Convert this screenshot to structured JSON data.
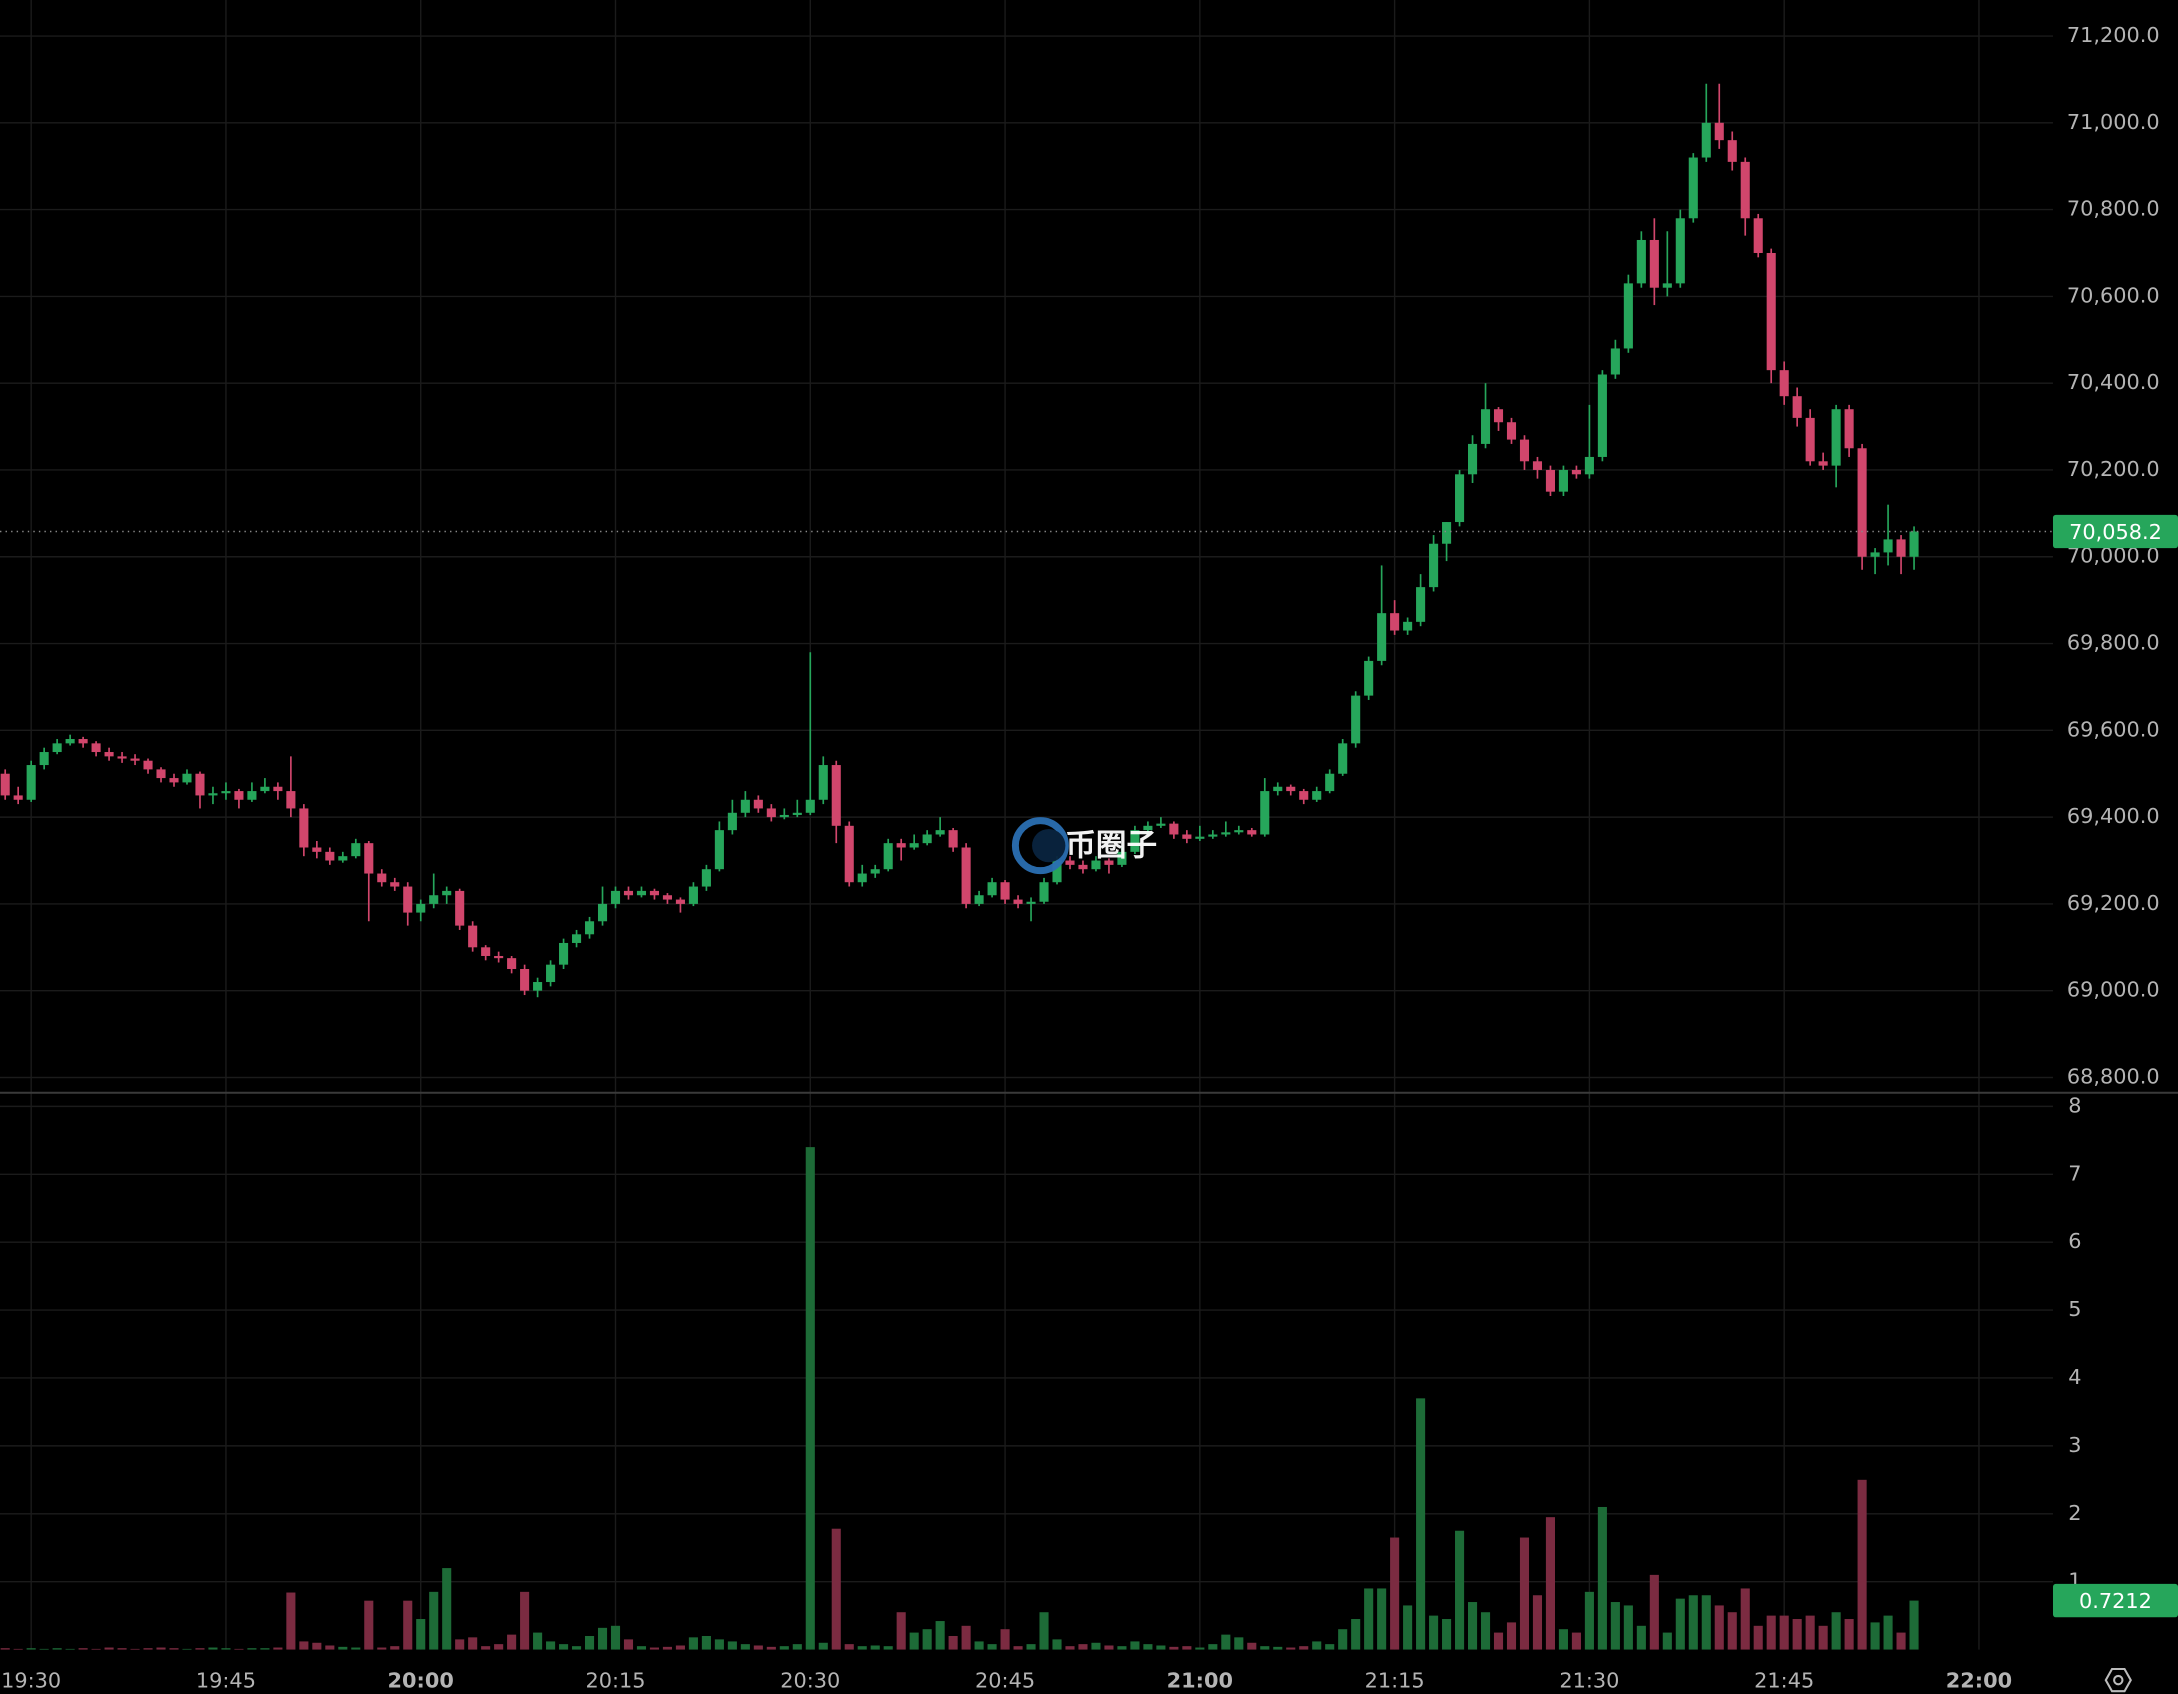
{
  "chart_data": {
    "type": "candlestick",
    "grid": true,
    "watermark": "币圈子",
    "up_color": "#26a65b",
    "down_color": "#d1466c",
    "volume_up_color": "#1d6b37",
    "volume_down_color": "#7b2b41",
    "xlim": [
      1167.6,
      1325.7
    ],
    "xticks": [
      {
        "value": 1170,
        "label": "19:30"
      },
      {
        "value": 1185,
        "label": "19:45"
      },
      {
        "value": 1200,
        "label": "20:00",
        "bold": true
      },
      {
        "value": 1215,
        "label": "20:15"
      },
      {
        "value": 1230,
        "label": "20:30"
      },
      {
        "value": 1245,
        "label": "20:45"
      },
      {
        "value": 1260,
        "label": "21:00",
        "bold": true
      },
      {
        "value": 1275,
        "label": "21:15"
      },
      {
        "value": 1290,
        "label": "21:30"
      },
      {
        "value": 1305,
        "label": "21:45"
      },
      {
        "value": 1320,
        "label": "22:00",
        "bold": true
      }
    ],
    "ylim": [
      68768,
      71283
    ],
    "yticks": [
      {
        "value": 68800,
        "label": "68,800.0"
      },
      {
        "value": 69000,
        "label": "69,000.0"
      },
      {
        "value": 69200,
        "label": "69,200.0"
      },
      {
        "value": 69400,
        "label": "69,400.0"
      },
      {
        "value": 69600,
        "label": "69,600.0"
      },
      {
        "value": 69800,
        "label": "69,800.0"
      },
      {
        "value": 70000,
        "label": "70,000.0"
      },
      {
        "value": 70200,
        "label": "70,200.0"
      },
      {
        "value": 70400,
        "label": "70,400.0"
      },
      {
        "value": 70600,
        "label": "70,600.0"
      },
      {
        "value": 70800,
        "label": "70,800.0"
      },
      {
        "value": 71000,
        "label": "71,000.0"
      },
      {
        "value": 71200,
        "label": "71,200.0"
      }
    ],
    "volume_ylim": [
      0,
      8.18
    ],
    "volume_yticks": [
      1,
      2,
      3,
      4,
      5,
      6,
      7,
      8
    ],
    "last_price": {
      "value": 70058.2,
      "label": "70,058.2"
    },
    "last_volume": 0.7212,
    "x": [
      1168,
      1169,
      1170,
      1171,
      1172,
      1173,
      1174,
      1175,
      1176,
      1177,
      1178,
      1179,
      1180,
      1181,
      1182,
      1183,
      1184,
      1185,
      1186,
      1187,
      1188,
      1189,
      1190,
      1191,
      1192,
      1193,
      1194,
      1195,
      1196,
      1197,
      1198,
      1199,
      1200,
      1201,
      1202,
      1203,
      1204,
      1205,
      1206,
      1207,
      1208,
      1209,
      1210,
      1211,
      1212,
      1213,
      1214,
      1215,
      1216,
      1217,
      1218,
      1219,
      1220,
      1221,
      1222,
      1223,
      1224,
      1225,
      1226,
      1227,
      1228,
      1229,
      1230,
      1231,
      1232,
      1233,
      1234,
      1235,
      1236,
      1237,
      1238,
      1239,
      1240,
      1241,
      1242,
      1243,
      1244,
      1245,
      1246,
      1247,
      1248,
      1249,
      1250,
      1251,
      1252,
      1253,
      1254,
      1255,
      1256,
      1257,
      1258,
      1259,
      1260,
      1261,
      1262,
      1263,
      1264,
      1265,
      1266,
      1267,
      1268,
      1269,
      1270,
      1271,
      1272,
      1273,
      1274,
      1275,
      1276,
      1277,
      1278,
      1279,
      1280,
      1281,
      1282,
      1283,
      1284,
      1285,
      1286,
      1287,
      1288,
      1289,
      1290,
      1291,
      1292,
      1293,
      1294,
      1295,
      1296,
      1297,
      1298,
      1299,
      1300,
      1301,
      1302,
      1303,
      1304,
      1305,
      1306,
      1307,
      1308,
      1309,
      1310,
      1311,
      1312,
      1313,
      1314,
      1315
    ],
    "open": [
      69500,
      69450,
      69440,
      69520,
      69550,
      69570,
      69580,
      69570,
      69550,
      69540,
      69535,
      69530,
      69510,
      69490,
      69480,
      69500,
      69450,
      69455,
      69460,
      69440,
      69460,
      69470,
      69460,
      69420,
      69330,
      69320,
      69300,
      69310,
      69340,
      69270,
      69250,
      69240,
      69180,
      69200,
      69220,
      69230,
      69150,
      69100,
      69080,
      69075,
      69050,
      69000,
      69020,
      69060,
      69110,
      69130,
      69160,
      69200,
      69230,
      69220,
      69230,
      69220,
      69210,
      69200,
      69240,
      69280,
      69370,
      69410,
      69440,
      69420,
      69400,
      69405,
      69410,
      69440,
      69520,
      69380,
      69250,
      69270,
      69280,
      69340,
      69330,
      69340,
      69360,
      69370,
      69330,
      69200,
      69220,
      69250,
      69210,
      69200,
      69205,
      69250,
      69300,
      69290,
      69280,
      69300,
      69290,
      69320,
      69370,
      69380,
      69385,
      69360,
      69350,
      69355,
      69360,
      69365,
      69370,
      69360,
      69460,
      69470,
      69460,
      69440,
      69460,
      69500,
      69570,
      69680,
      69760,
      69870,
      69830,
      69850,
      69930,
      70030,
      70080,
      70190,
      70260,
      70340,
      70310,
      70270,
      70220,
      70200,
      70150,
      70200,
      70190,
      70230,
      70420,
      70480,
      70630,
      70730,
      70620,
      70630,
      70780,
      70920,
      71000,
      70960,
      70910,
      70780,
      70700,
      70430,
      70370,
      70320,
      70220,
      70210,
      70340,
      70250,
      70000,
      70010,
      70040,
      70000
    ],
    "high": [
      69510,
      69470,
      69530,
      69560,
      69580,
      69590,
      69585,
      69575,
      69560,
      69550,
      69545,
      69535,
      69515,
      69500,
      69510,
      69505,
      69470,
      69480,
      69465,
      69480,
      69490,
      69480,
      69540,
      69430,
      69345,
      69330,
      69320,
      69350,
      69345,
      69280,
      69260,
      69250,
      69210,
      69270,
      69240,
      69235,
      69160,
      69105,
      69090,
      69080,
      69060,
      69030,
      69070,
      69120,
      69140,
      69170,
      69240,
      69240,
      69240,
      69240,
      69235,
      69225,
      69215,
      69250,
      69290,
      69390,
      69440,
      69460,
      69450,
      69430,
      69420,
      69440,
      69780,
      69540,
      69530,
      69390,
      69290,
      69290,
      69350,
      69350,
      69360,
      69370,
      69400,
      69375,
      69340,
      69230,
      69260,
      69255,
      69220,
      69215,
      69260,
      69310,
      69310,
      69300,
      69310,
      69305,
      69330,
      69380,
      69390,
      69400,
      69390,
      69370,
      69380,
      69370,
      69390,
      69380,
      69375,
      69490,
      69480,
      69475,
      69465,
      69470,
      69510,
      69580,
      69690,
      69770,
      69980,
      69900,
      69860,
      69960,
      70050,
      70080,
      70200,
      70280,
      70400,
      70345,
      70320,
      70280,
      70230,
      70210,
      70210,
      70210,
      70350,
      70430,
      70500,
      70650,
      70750,
      70780,
      70750,
      70800,
      70930,
      71090,
      71090,
      70980,
      70920,
      70790,
      70710,
      70450,
      70390,
      70340,
      70240,
      70350,
      70350,
      70260,
      70020,
      70120,
      70050,
      70070
    ],
    "low": [
      69440,
      69430,
      69435,
      69510,
      69545,
      69565,
      69560,
      69540,
      69530,
      69525,
      69520,
      69500,
      69480,
      69470,
      69475,
      69420,
      69430,
      69440,
      69420,
      69435,
      69455,
      69440,
      69400,
      69310,
      69305,
      69290,
      69295,
      69305,
      69160,
      69240,
      69230,
      69150,
      69160,
      69190,
      69200,
      69140,
      69090,
      69070,
      69065,
      69040,
      68990,
      68985,
      69010,
      69050,
      69100,
      69120,
      69150,
      69190,
      69210,
      69215,
      69210,
      69200,
      69180,
      69195,
      69230,
      69275,
      69360,
      69400,
      69410,
      69390,
      69395,
      69400,
      69405,
      69430,
      69340,
      69240,
      69240,
      69260,
      69275,
      69300,
      69325,
      69335,
      69355,
      69320,
      69190,
      69195,
      69215,
      69200,
      69190,
      69160,
      69200,
      69245,
      69280,
      69270,
      69275,
      69270,
      69285,
      69315,
      69365,
      69375,
      69350,
      69340,
      69345,
      69350,
      69355,
      69360,
      69355,
      69355,
      69450,
      69450,
      69430,
      69435,
      69455,
      69495,
      69560,
      69670,
      69750,
      69820,
      69820,
      69840,
      69920,
      69990,
      70070,
      70170,
      70250,
      70290,
      70260,
      70200,
      70180,
      70140,
      70140,
      70180,
      70180,
      70220,
      70410,
      70470,
      70620,
      70580,
      70600,
      70620,
      70770,
      70910,
      70940,
      70890,
      70740,
      70690,
      70400,
      70350,
      70300,
      70210,
      70200,
      70160,
      70230,
      69970,
      69960,
      69980,
      69960,
      69970
    ],
    "close": [
      69450,
      69440,
      69520,
      69550,
      69570,
      69580,
      69570,
      69550,
      69540,
      69535,
      69530,
      69510,
      69490,
      69480,
      69500,
      69450,
      69455,
      69460,
      69440,
      69460,
      69470,
      69460,
      69420,
      69330,
      69320,
      69300,
      69310,
      69340,
      69270,
      69250,
      69240,
      69180,
      69200,
      69220,
      69230,
      69150,
      69100,
      69080,
      69075,
      69050,
      69000,
      69020,
      69060,
      69110,
      69130,
      69160,
      69200,
      69230,
      69220,
      69230,
      69220,
      69210,
      69200,
      69240,
      69280,
      69370,
      69410,
      69440,
      69420,
      69400,
      69405,
      69410,
      69440,
      69520,
      69380,
      69250,
      69270,
      69280,
      69340,
      69330,
      69340,
      69360,
      69370,
      69330,
      69200,
      69220,
      69250,
      69210,
      69200,
      69205,
      69250,
      69300,
      69290,
      69280,
      69300,
      69290,
      69320,
      69370,
      69380,
      69385,
      69360,
      69350,
      69355,
      69360,
      69365,
      69370,
      69360,
      69460,
      69470,
      69460,
      69440,
      69460,
      69500,
      69570,
      69680,
      69760,
      69870,
      69830,
      69850,
      69930,
      70030,
      70080,
      70190,
      70260,
      70340,
      70310,
      70270,
      70220,
      70200,
      70150,
      70200,
      70190,
      70230,
      70420,
      70480,
      70630,
      70730,
      70620,
      70630,
      70780,
      70920,
      71000,
      70960,
      70910,
      70780,
      70700,
      70430,
      70370,
      70320,
      70220,
      70210,
      70340,
      70250,
      70000,
      70010,
      70040,
      70000,
      70058.2
    ],
    "volume": [
      0.02,
      0.01,
      0.02,
      0.01,
      0.02,
      0.01,
      0.02,
      0.01,
      0.03,
      0.02,
      0.01,
      0.02,
      0.03,
      0.02,
      0.01,
      0.02,
      0.03,
      0.02,
      0.01,
      0.02,
      0.02,
      0.03,
      0.84,
      0.12,
      0.1,
      0.06,
      0.04,
      0.03,
      0.72,
      0.03,
      0.05,
      0.72,
      0.45,
      0.85,
      1.2,
      0.15,
      0.18,
      0.05,
      0.08,
      0.22,
      0.85,
      0.25,
      0.12,
      0.08,
      0.05,
      0.2,
      0.32,
      0.35,
      0.15,
      0.05,
      0.03,
      0.04,
      0.06,
      0.18,
      0.2,
      0.15,
      0.12,
      0.08,
      0.06,
      0.04,
      0.05,
      0.08,
      7.4,
      0.1,
      1.78,
      0.08,
      0.05,
      0.06,
      0.05,
      0.55,
      0.25,
      0.3,
      0.42,
      0.2,
      0.35,
      0.12,
      0.08,
      0.3,
      0.05,
      0.08,
      0.55,
      0.15,
      0.05,
      0.08,
      0.1,
      0.06,
      0.05,
      0.12,
      0.08,
      0.06,
      0.04,
      0.05,
      0.03,
      0.08,
      0.22,
      0.18,
      0.1,
      0.05,
      0.04,
      0.03,
      0.05,
      0.12,
      0.08,
      0.3,
      0.45,
      0.9,
      0.9,
      1.65,
      0.65,
      3.7,
      0.5,
      0.45,
      1.75,
      0.7,
      0.55,
      0.25,
      0.4,
      1.65,
      0.8,
      1.95,
      0.3,
      0.25,
      0.85,
      2.1,
      0.7,
      0.65,
      0.35,
      1.1,
      0.25,
      0.75,
      0.8,
      0.8,
      0.65,
      0.55,
      0.9,
      0.35,
      0.5,
      0.5,
      0.45,
      0.5,
      0.35,
      0.55,
      0.45,
      2.5,
      0.4,
      0.5,
      0.25,
      0.7212
    ]
  }
}
